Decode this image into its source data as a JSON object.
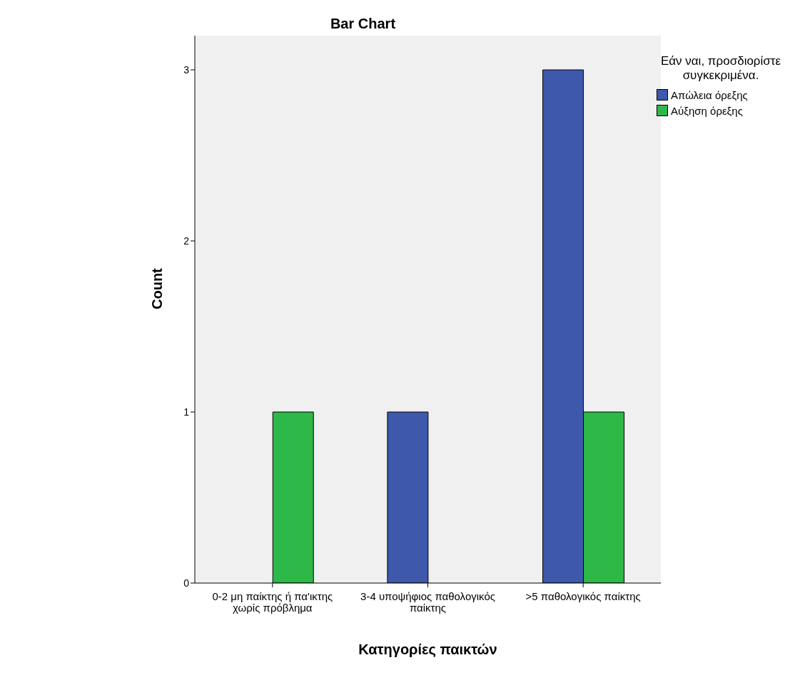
{
  "chart_data": {
    "type": "bar",
    "title": "Bar Chart",
    "xlabel": "Κατηγορίες παικτών",
    "ylabel": "Count",
    "categories": [
      "0-2 μη παίκτης ή πα'ικτης χωρίς πρόβλημα",
      "3-4 υποψήφιος παθολογικός παίκτης",
      ">5 παθολογικός παίκτης"
    ],
    "series": [
      {
        "name": "Απώλεια όρεξης",
        "color": "#3e58ac",
        "values": [
          0,
          1,
          3
        ]
      },
      {
        "name": "Αύξηση όρεξης",
        "color": "#2eb848",
        "values": [
          1,
          0,
          1
        ]
      }
    ],
    "legend_title": "Εάν ναι, προσδιορίστε συγκεκριμένα.",
    "legend": "top right",
    "ylim": [
      0,
      3.2
    ],
    "yticks": [
      0,
      1,
      2,
      3
    ]
  }
}
